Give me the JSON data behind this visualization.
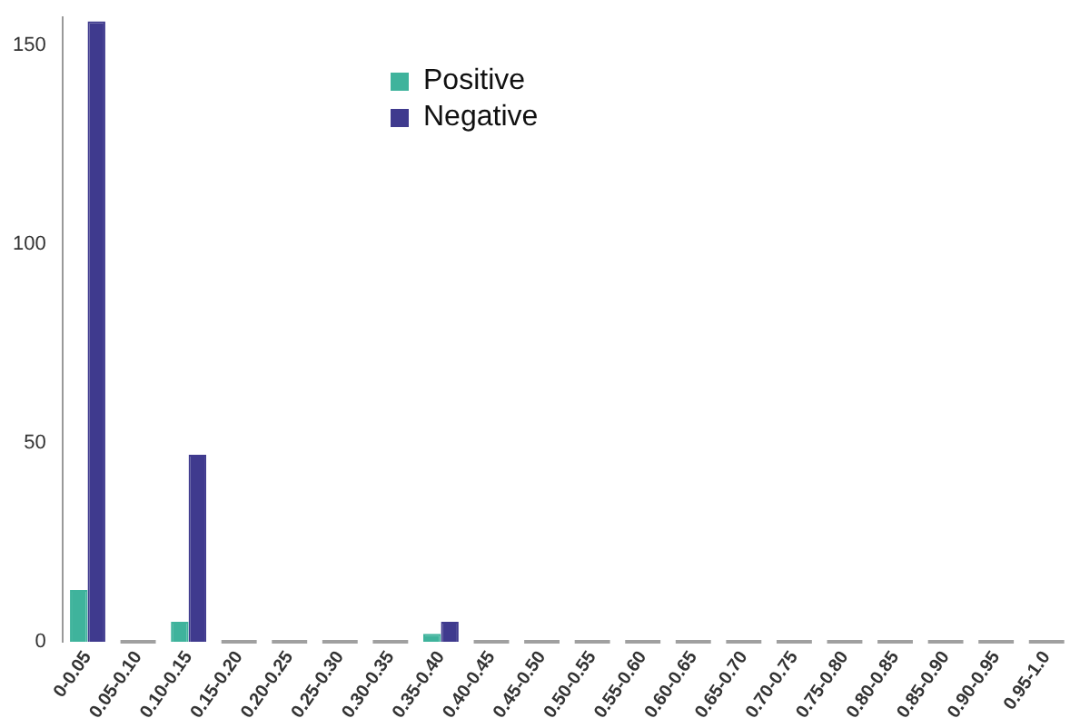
{
  "chart_data": {
    "type": "bar",
    "categories": [
      "0-0.05",
      "0.05-0.10",
      "0.10-0.15",
      "0.15-0.20",
      "0.20-0.25",
      "0.25-0.30",
      "0.30-0.35",
      "0.35-0.40",
      "0.40-0.45",
      "0.45-0.50",
      "0.50-0.55",
      "0.55-0.60",
      "0.60-0.65",
      "0.65-0.70",
      "0.70-0.75",
      "0.75-0.80",
      "0.80-0.85",
      "0.85-0.90",
      "0.90-0.95",
      "0.95-1.0"
    ],
    "series": [
      {
        "name": "Positive",
        "color": "#3fb39c",
        "values": [
          13,
          0,
          5,
          0,
          0,
          0,
          0,
          2,
          0,
          0,
          0,
          0,
          0,
          0,
          0,
          0,
          0,
          0,
          0,
          0
        ]
      },
      {
        "name": "Negative",
        "color": "#3f3a8e",
        "values": [
          156,
          0,
          47,
          0,
          0,
          0,
          0,
          5,
          0,
          0,
          0,
          0,
          0,
          0,
          0,
          0,
          0,
          0,
          0,
          0
        ]
      }
    ],
    "ylim": [
      0,
      157
    ],
    "yticks": [
      0,
      50,
      100,
      150
    ],
    "grid": false,
    "legend": "top left"
  }
}
